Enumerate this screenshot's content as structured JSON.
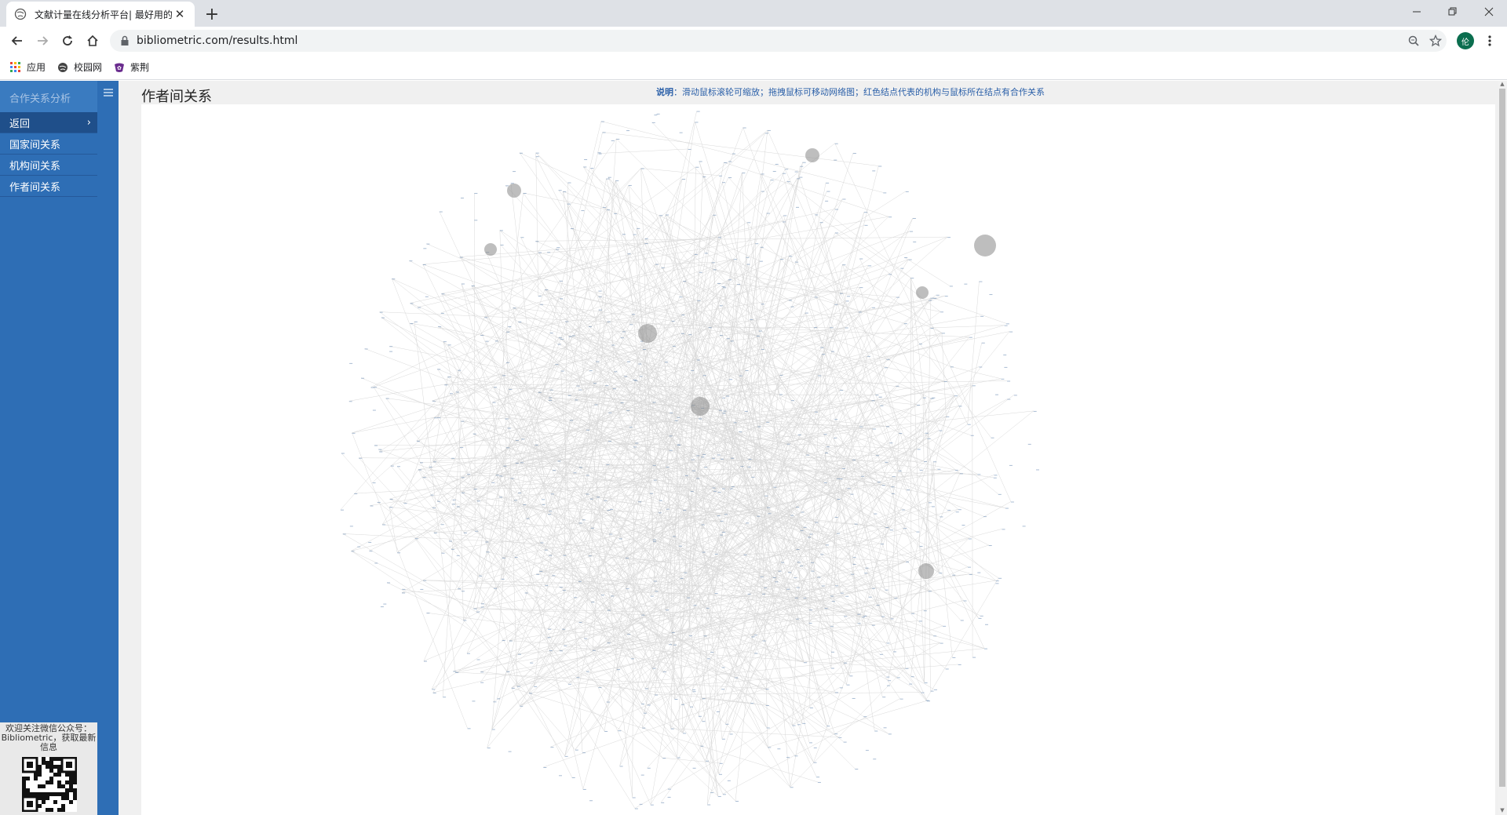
{
  "browser": {
    "tab_title": "文献计量在线分析平台| 最好用的",
    "url": "bibliometric.com/results.html",
    "profile_initial": "伦",
    "bookmarks": [
      "应用",
      "校园网",
      "紫荆"
    ]
  },
  "sidebar": {
    "title": "合作关系分析",
    "items": [
      {
        "label": "返回",
        "active": true
      },
      {
        "label": "国家间关系",
        "active": false
      },
      {
        "label": "机构间关系",
        "active": false
      },
      {
        "label": "作者间关系",
        "active": false
      }
    ],
    "qr_caption": "欢迎关注微信公众号：Bibliometric，获取最新信息"
  },
  "main": {
    "title": "作者间关系",
    "notice_label": "说明",
    "notice_text": "：滑动鼠标滚轮可缩放；拖拽鼠标可移动网络图；红色结点代表的机构与鼠标所在结点有合作关系"
  },
  "colors": {
    "sidebar_bg": "#2e6eb5",
    "sidebar_active": "#1f4f8a",
    "notice_text": "#2a5fa8",
    "edge": "#c8c8c8",
    "node": "#6f8fb5"
  }
}
